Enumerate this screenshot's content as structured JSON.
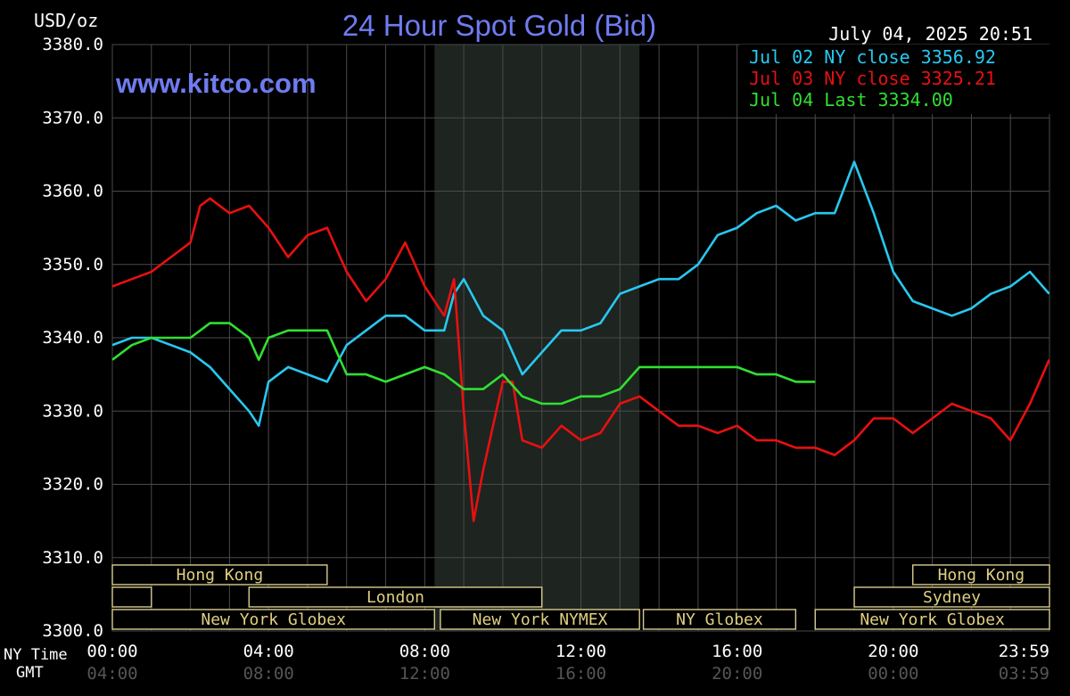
{
  "chart_data": {
    "type": "line",
    "title": "24 Hour Spot Gold (Bid)",
    "ylabel": "USD/oz",
    "watermark": "www.kitco.com",
    "timestamp": "July 04, 2025 20:51",
    "ylim": [
      3300,
      3380
    ],
    "yticks": [
      "3380.0",
      "3370.0",
      "3360.0",
      "3350.0",
      "3340.0",
      "3330.0",
      "3320.0",
      "3310.0",
      "3300.0"
    ],
    "x_range_hours": [
      0,
      24
    ],
    "ny_time_label": "NY Time",
    "gmt_label": "GMT",
    "ny_time_ticks": [
      "00:00",
      "04:00",
      "08:00",
      "12:00",
      "16:00",
      "20:00",
      "23:59"
    ],
    "gmt_ticks": [
      "04:00",
      "08:00",
      "12:00",
      "16:00",
      "20:00",
      "00:00",
      "03:59"
    ],
    "shaded_period_hours": [
      8.25,
      13.5
    ],
    "grid": true,
    "legend_position": "top-right",
    "colors": {
      "background": "#000000",
      "grid": "#4a4a4a",
      "axis_text": "#ffffff",
      "title": "#6f7cf0",
      "session_text": "#e0d080",
      "session_border": "#d8cc90",
      "shaded": "#1e2420"
    },
    "legend": [
      {
        "label": "Jul 02 NY close 3356.92",
        "color": "#28c8f0"
      },
      {
        "label": "Jul 03 NY close 3325.21",
        "color": "#e81010"
      },
      {
        "label": "Jul 04 Last 3334.00",
        "color": "#30e030"
      }
    ],
    "series": [
      {
        "color": "#28c8f0",
        "x": [
          0,
          0.5,
          1,
          1.5,
          2,
          2.5,
          3,
          3.5,
          3.75,
          4,
          4.5,
          5,
          5.5,
          6,
          6.5,
          7,
          7.5,
          8,
          8.5,
          8.75,
          9,
          9.5,
          10,
          10.5,
          11,
          11.5,
          12,
          12.5,
          13,
          13.5,
          14,
          14.5,
          15,
          15.5,
          16,
          16.5,
          17,
          17.5,
          18,
          18.5,
          19,
          19.5,
          20,
          20.5,
          21,
          21.5,
          22,
          22.5,
          23,
          23.5,
          23.99
        ],
        "values": [
          3339,
          3340,
          3340,
          3339,
          3338,
          3336,
          3333,
          3330,
          3328,
          3334,
          3336,
          3335,
          3334,
          3339,
          3341,
          3343,
          3343,
          3341,
          3341,
          3346,
          3348,
          3343,
          3341,
          3335,
          3338,
          3341,
          3341,
          3342,
          3346,
          3347,
          3348,
          3348,
          3350,
          3354,
          3355,
          3357,
          3358,
          3356,
          3357,
          3357,
          3364,
          3357,
          3349,
          3345,
          3344,
          3343,
          3344,
          3346,
          3347,
          3349,
          3346
        ]
      },
      {
        "color": "#e81010",
        "x": [
          0,
          0.5,
          1,
          1.5,
          2,
          2.25,
          2.5,
          3,
          3.5,
          4,
          4.5,
          5,
          5.5,
          6,
          6.5,
          7,
          7.5,
          8,
          8.25,
          8.5,
          8.75,
          9,
          9.25,
          9.5,
          10,
          10.25,
          10.5,
          11,
          11.5,
          12,
          12.5,
          13,
          13.5,
          14,
          14.5,
          15,
          15.5,
          16,
          16.5,
          17,
          17.5,
          18,
          18.5,
          19,
          19.5,
          20,
          20.5,
          21,
          21.5,
          22,
          22.5,
          23,
          23.5,
          23.99
        ],
        "values": [
          3347,
          3348,
          3349,
          3351,
          3353,
          3358,
          3359,
          3357,
          3358,
          3355,
          3351,
          3354,
          3355,
          3349,
          3345,
          3348,
          3353,
          3347,
          3345,
          3343,
          3348,
          3330,
          3315,
          3322,
          3334,
          3334,
          3326,
          3325,
          3328,
          3326,
          3327,
          3331,
          3332,
          3330,
          3328,
          3328,
          3327,
          3328,
          3326,
          3326,
          3325,
          3325,
          3324,
          3326,
          3329,
          3329,
          3327,
          3329,
          3331,
          3330,
          3329,
          3326,
          3331,
          3337
        ]
      },
      {
        "color": "#30e030",
        "x": [
          0,
          0.5,
          1,
          1.5,
          2,
          2.5,
          3,
          3.5,
          3.75,
          4,
          4.5,
          5,
          5.5,
          6,
          6.5,
          7,
          7.5,
          8,
          8.5,
          9,
          9.5,
          10,
          10.5,
          11,
          11.5,
          12,
          12.5,
          13,
          13.5,
          14,
          14.5,
          15,
          15.5,
          16,
          16.5,
          17,
          17.5,
          18
        ],
        "values": [
          3337,
          3339,
          3340,
          3340,
          3340,
          3342,
          3342,
          3340,
          3337,
          3340,
          3341,
          3341,
          3341,
          3335,
          3335,
          3334,
          3335,
          3336,
          3335,
          3333,
          3333,
          3335,
          3332,
          3331,
          3331,
          3332,
          3332,
          3333,
          3336,
          3336,
          3336,
          3336,
          3336,
          3336,
          3335,
          3335,
          3334,
          3334
        ]
      }
    ]
  },
  "sessions": [
    {
      "label": "Hong Kong",
      "row": 0,
      "start": 0,
      "end": 5.5,
      "show_label": true
    },
    {
      "label": "",
      "row": 1,
      "start": 0,
      "end": 1,
      "show_label": false
    },
    {
      "label": "London",
      "row": 1,
      "start": 3.5,
      "end": 11,
      "show_label": true
    },
    {
      "label": "New York Globex",
      "row": 2,
      "start": 0,
      "end": 8.25,
      "show_label": true
    },
    {
      "label": "New York NYMEX",
      "row": 2,
      "start": 8.4,
      "end": 13.5,
      "show_label": true
    },
    {
      "label": "NY Globex",
      "row": 2,
      "start": 13.6,
      "end": 17.5,
      "show_label": true
    },
    {
      "label": "Hong Kong",
      "row": 0,
      "start": 20.5,
      "end": 24,
      "show_label": true
    },
    {
      "label": "Sydney",
      "row": 1,
      "start": 19,
      "end": 24,
      "show_label": true
    },
    {
      "label": "New York Globex",
      "row": 2,
      "start": 18,
      "end": 24,
      "show_label": true
    }
  ]
}
